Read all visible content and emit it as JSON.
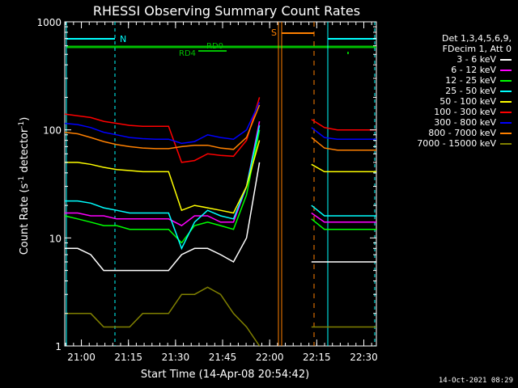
{
  "chart_data": {
    "type": "line",
    "title": "RHESSI Observing Summary Count Rates",
    "xlabel": "Start Time (14-Apr-08 20:54:42)",
    "ylabel_main": "Count Rate (s",
    "ylabel_sup": "-1",
    "ylabel_mid": " detector",
    "ylabel_end": ")",
    "y_scale": "log",
    "ylim": [
      1,
      1000
    ],
    "y_ticks": [
      {
        "value": 1,
        "label": "1"
      },
      {
        "value": 10,
        "label": "10"
      },
      {
        "value": 100,
        "label": "100"
      },
      {
        "value": 1000,
        "label": "1000"
      }
    ],
    "x_range_minutes": [
      0,
      99.3
    ],
    "x_ticks": [
      {
        "minute": 5.3,
        "label": "21:00"
      },
      {
        "minute": 20.3,
        "label": "21:15"
      },
      {
        "minute": 35.3,
        "label": "21:30"
      },
      {
        "minute": 50.3,
        "label": "21:45"
      },
      {
        "minute": 65.3,
        "label": "22:00"
      },
      {
        "minute": 80.3,
        "label": "22:15"
      },
      {
        "minute": 95.3,
        "label": "22:30"
      }
    ],
    "legend_header": [
      "Det 1,3,4,5,6,9,",
      "FDecim 1, Att 0"
    ],
    "series": [
      {
        "name": "3 - 6 keV",
        "color": "#ffffff",
        "values": [
          8,
          8,
          7,
          5,
          5,
          5,
          5,
          5,
          5,
          7,
          8,
          8,
          7,
          6,
          10,
          50,
          0,
          0,
          0,
          6,
          6,
          6,
          6,
          6,
          6
        ]
      },
      {
        "name": "6 - 12 keV",
        "color": "#ff00ff",
        "values": [
          17,
          17,
          16,
          16,
          15,
          15,
          15,
          15,
          15,
          13,
          16,
          16,
          14,
          14,
          30,
          120,
          0,
          0,
          0,
          17,
          14,
          14,
          14,
          14,
          14
        ]
      },
      {
        "name": "12 - 25 keV",
        "color": "#00ff00",
        "values": [
          16,
          15,
          14,
          13,
          13,
          12,
          12,
          12,
          12,
          9,
          13,
          14,
          13,
          12,
          25,
          100,
          0,
          0,
          0,
          15,
          12,
          12,
          12,
          12,
          12
        ]
      },
      {
        "name": "25 - 50 keV",
        "color": "#00ffff",
        "values": [
          22,
          22,
          21,
          19,
          18,
          17,
          17,
          17,
          17,
          8,
          14,
          18,
          16,
          15,
          30,
          110,
          0,
          0,
          0,
          20,
          16,
          16,
          16,
          16,
          16
        ]
      },
      {
        "name": "50 - 100 keV",
        "color": "#ffff00",
        "values": [
          50,
          50,
          48,
          45,
          43,
          42,
          41,
          41,
          41,
          18,
          20,
          19,
          18,
          17,
          30,
          80,
          0,
          0,
          0,
          48,
          41,
          41,
          41,
          41,
          41
        ]
      },
      {
        "name": "100 - 300 keV",
        "color": "#ff0000",
        "values": [
          140,
          135,
          130,
          120,
          115,
          110,
          108,
          108,
          108,
          50,
          52,
          60,
          58,
          57,
          80,
          200,
          0,
          0,
          0,
          125,
          105,
          100,
          100,
          100,
          100
        ]
      },
      {
        "name": "300 - 800 keV",
        "color": "#0000ff",
        "values": [
          115,
          112,
          105,
          95,
          90,
          85,
          83,
          82,
          82,
          75,
          78,
          90,
          85,
          82,
          100,
          180,
          0,
          0,
          0,
          105,
          85,
          82,
          82,
          82,
          82
        ]
      },
      {
        "name": "800 - 7000 keV",
        "color": "#ff8000",
        "values": [
          95,
          92,
          85,
          78,
          73,
          70,
          68,
          67,
          67,
          70,
          72,
          72,
          68,
          66,
          85,
          170,
          0,
          0,
          0,
          85,
          68,
          65,
          65,
          65,
          65
        ]
      },
      {
        "name": "7000 - 15000 keV",
        "color": "#808000",
        "values": [
          2,
          2,
          2,
          1.5,
          1.5,
          1.5,
          2,
          2,
          2,
          3,
          3,
          3.5,
          3,
          2,
          1.5,
          1,
          0,
          0,
          0,
          1.5,
          1.5,
          1.5,
          1.5,
          1.5,
          1.5
        ]
      }
    ],
    "annotations": {
      "bars": [
        {
          "label": "N",
          "color": "#00ffff"
        },
        {
          "label": "RD0",
          "color": "#00c000"
        },
        {
          "label": "RD4",
          "color": "#00c000"
        },
        {
          "label": "S",
          "color": "#ff8000"
        }
      ]
    },
    "footer_stamp": "14-Oct-2021 08:29"
  }
}
